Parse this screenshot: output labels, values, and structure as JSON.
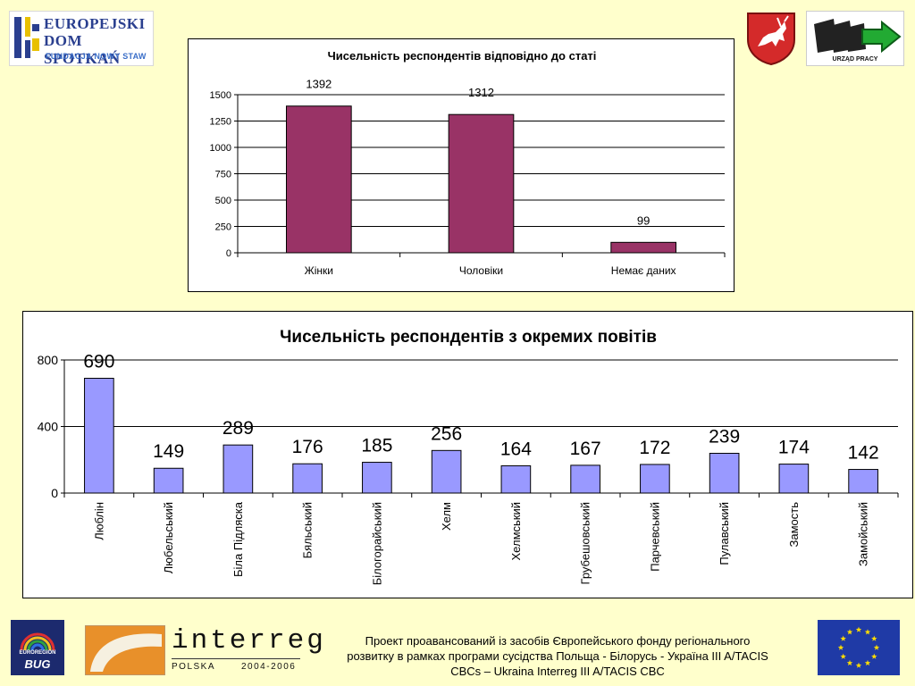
{
  "header": {
    "logo_left": {
      "line1": "EUROPEJSKI",
      "line2": "DOM SPOTKAŃ",
      "line3": "FUNDACJA NOWY STAW"
    },
    "logo_right_caption": "URZĄD PRACY"
  },
  "chart_data": [
    {
      "type": "bar",
      "title": "Чисельність респондентів відповідно до статі",
      "categories": [
        "Жінки",
        "Чоловіки",
        "Немає даних"
      ],
      "values": [
        1392,
        1312,
        99
      ],
      "data_labels": [
        "1392",
        "1312",
        "99"
      ],
      "ylim": [
        0,
        1500
      ],
      "yticks": [
        0,
        250,
        500,
        750,
        1000,
        1250,
        1500
      ],
      "ytick_labels": [
        "0",
        "250",
        "500",
        "750",
        "1000",
        "1250",
        "1500"
      ],
      "grid": true,
      "legend": "none",
      "bar_color": "#993366"
    },
    {
      "type": "bar",
      "title": "Чисельність респондентів з окремих повітів",
      "categories": [
        "Люблін",
        "Любельський",
        "Біла Підляска",
        "Бяльський",
        "Білогорайський",
        "Хелм",
        "Хелмський",
        "Грубешовський",
        "Парчевський",
        "Пулавський",
        "Замость",
        "Замойський"
      ],
      "values": [
        690,
        149,
        289,
        176,
        185,
        256,
        164,
        167,
        172,
        239,
        174,
        142
      ],
      "data_labels": [
        "690",
        "149",
        "289",
        "176",
        "185",
        "256",
        "164",
        "167",
        "172",
        "239",
        "174",
        "142"
      ],
      "ylim": [
        0,
        800
      ],
      "yticks": [
        0,
        400,
        800
      ],
      "ytick_labels": [
        "0",
        "400",
        "800"
      ],
      "grid": true,
      "legend": "none",
      "bar_color": "#9999ff"
    }
  ],
  "footer": {
    "euroregion_small": "EUROREGION",
    "euroregion_big": "BUG",
    "interreg_word": "interreg",
    "interreg_country": "POLSKA",
    "interreg_years": "2004-2006",
    "text_line1": "Проект проавансований із засобів Європейського фонду регіонального",
    "text_line2": "розвитку в рамках програми сусідства Польща - Білорусь - Україна III A/TACIS",
    "text_line3": "CBCs – Ukraina Interreg III A/TACIS CBC"
  }
}
